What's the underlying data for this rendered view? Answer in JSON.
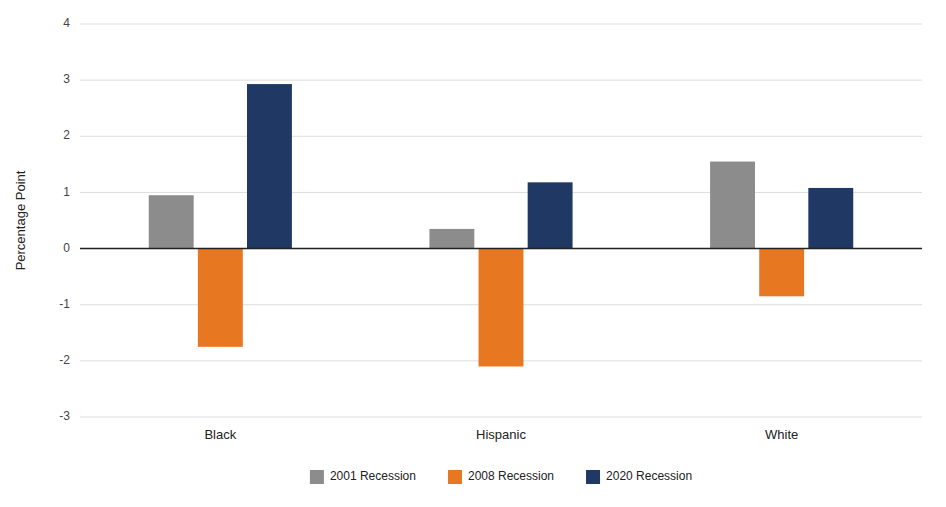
{
  "chart_data": {
    "type": "bar",
    "categories": [
      "Black",
      "Hispanic",
      "White"
    ],
    "series": [
      {
        "name": "2001 Recession",
        "color": "#8c8c8c",
        "values": [
          0.95,
          0.35,
          1.55
        ]
      },
      {
        "name": "2008 Recession",
        "color": "#e87722",
        "values": [
          -1.75,
          -2.1,
          -0.85
        ]
      },
      {
        "name": "2020 Recession",
        "color": "#1f3864",
        "values": [
          2.93,
          1.18,
          1.08
        ]
      }
    ],
    "ylabel": "Percentage Point",
    "ylim": [
      -3,
      4
    ],
    "yticks": [
      -3,
      -2,
      -1,
      0,
      1,
      2,
      3,
      4
    ],
    "grid": true,
    "legend": "bottom"
  }
}
